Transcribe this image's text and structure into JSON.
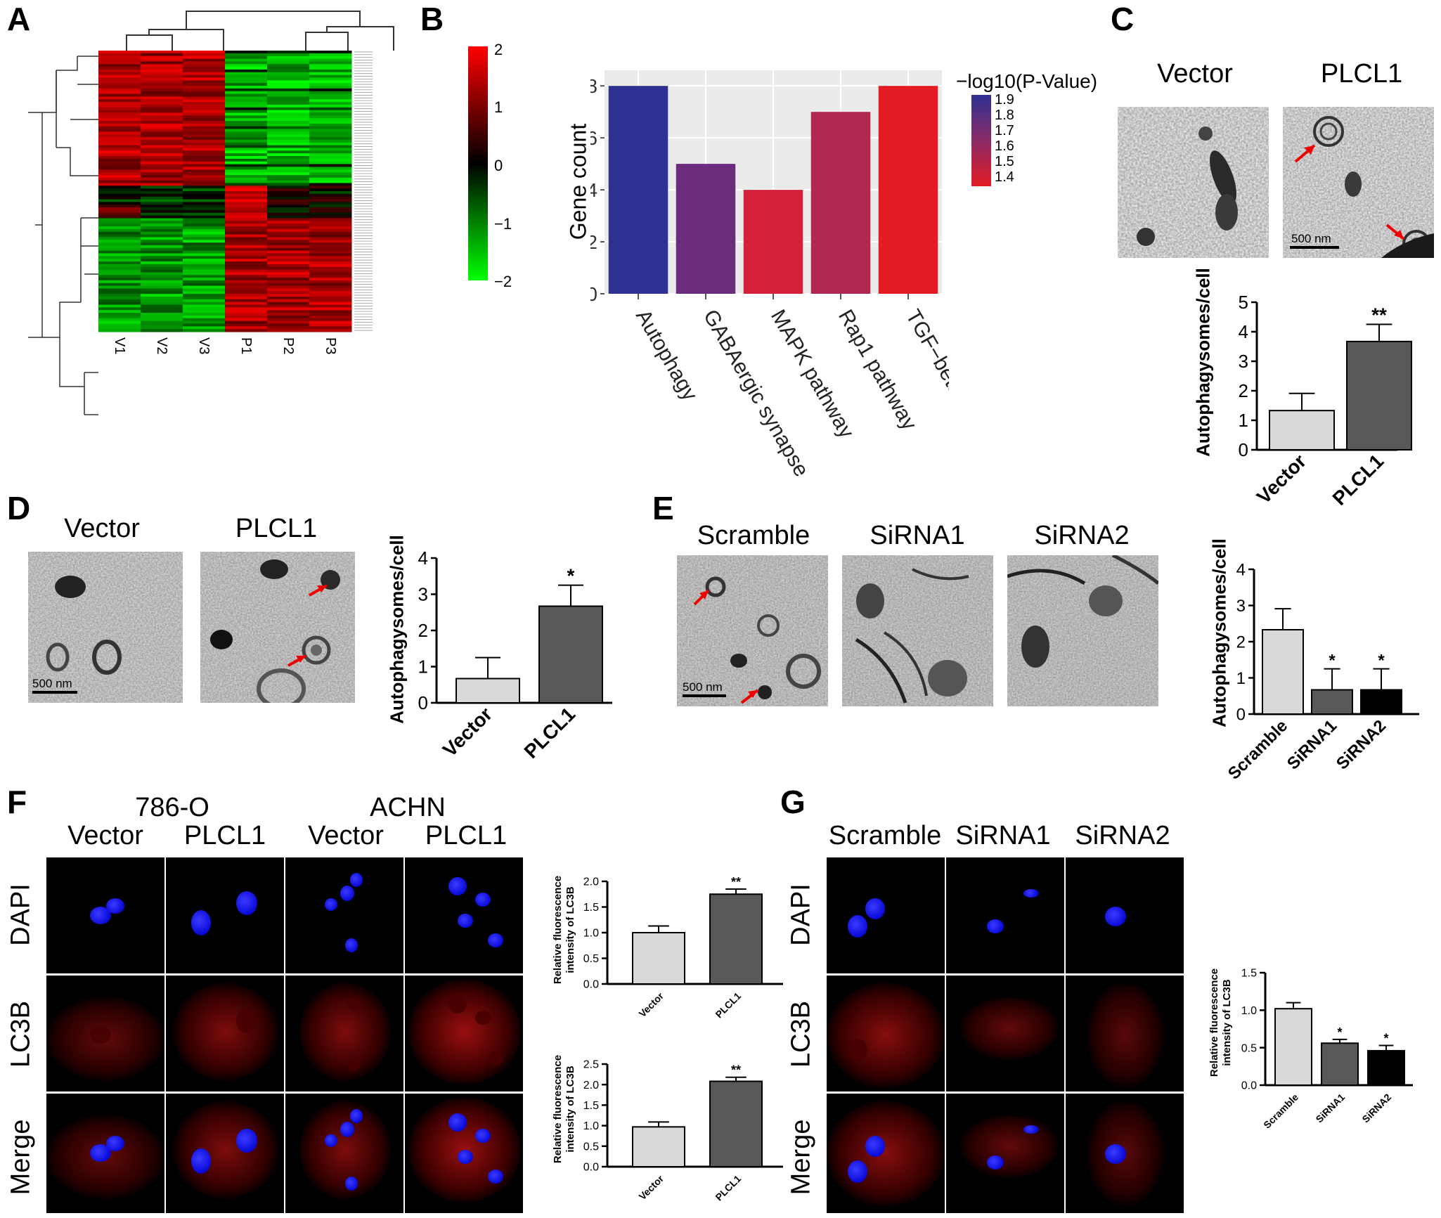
{
  "panels": {
    "A": "A",
    "B": "B",
    "C": "C",
    "D": "D",
    "E": "E",
    "F": "F",
    "G": "G"
  },
  "heatmap": {
    "columns": [
      "V1",
      "V2",
      "V3",
      "P1",
      "P2",
      "P3"
    ],
    "scale_ticks": [
      "2",
      "1",
      "0",
      "−1",
      "−2"
    ],
    "scale_colors": [
      "#ff0000",
      "#000000",
      "#00ff00"
    ]
  },
  "panelB": {
    "ylabel": "Gene count",
    "legend_title": "−log10(P-Value)",
    "legend_ticks": [
      "1.9",
      "1.8",
      "1.7",
      "1.6",
      "1.5",
      "1.4"
    ]
  },
  "panelC": {
    "captions": [
      "Vector",
      "PLCL1"
    ],
    "scalebar": "500 nm"
  },
  "panelD": {
    "captions": [
      "Vector",
      "PLCL1"
    ],
    "scalebar": "500 nm"
  },
  "panelE": {
    "captions": [
      "Scramble",
      "SiRNA1",
      "SiRNA2"
    ],
    "scalebar": "500 nm"
  },
  "panelF": {
    "cell_lines": [
      "786-O",
      "ACHN"
    ],
    "columns": [
      "Vector",
      "PLCL1",
      "Vector",
      "PLCL1"
    ],
    "rows": [
      "DAPI",
      "LC3B",
      "Merge"
    ]
  },
  "panelG": {
    "columns": [
      "Scramble",
      "SiRNA1",
      "SiRNA2"
    ],
    "rows": [
      "DAPI",
      "LC3B",
      "Merge"
    ]
  },
  "chart_data": [
    {
      "id": "B",
      "type": "bar",
      "categories": [
        "Autophagy",
        "GABAergic synapse",
        "MAPK pathway",
        "Rap1 pathway",
        "TGF−beta pathway"
      ],
      "values": [
        8,
        5,
        4,
        7,
        8
      ],
      "colors": [
        "#2e3192",
        "#6b2c7e",
        "#d4213a",
        "#b0284f",
        "#e31c23"
      ],
      "xlabel": "",
      "ylabel": "Gene count",
      "ylim": [
        0,
        8.6
      ],
      "yticks": [
        0,
        2,
        4,
        6,
        8
      ],
      "grid": true,
      "legend": "top-right"
    },
    {
      "id": "C",
      "type": "bar",
      "categories": [
        "Vector",
        "PLCL1"
      ],
      "values": [
        1.33,
        3.67
      ],
      "errors": [
        0.58,
        0.58
      ],
      "significance": [
        "",
        "**"
      ],
      "colors": [
        "#d9d9d9",
        "#595959"
      ],
      "ylabel": "Autophagysomes/cell",
      "ylim": [
        0,
        5
      ],
      "yticks": [
        0,
        1,
        2,
        3,
        4,
        5
      ]
    },
    {
      "id": "D",
      "type": "bar",
      "categories": [
        "Vector",
        "PLCL1"
      ],
      "values": [
        0.67,
        2.67
      ],
      "errors": [
        0.58,
        0.58
      ],
      "significance": [
        "",
        "*"
      ],
      "colors": [
        "#d9d9d9",
        "#595959"
      ],
      "ylabel": "Autophagysomes/cell",
      "ylim": [
        0,
        4
      ],
      "yticks": [
        0,
        1,
        2,
        3,
        4
      ]
    },
    {
      "id": "E",
      "type": "bar",
      "categories": [
        "Scramble",
        "SiRNA1",
        "SiRNA2"
      ],
      "values": [
        2.33,
        0.67,
        0.67
      ],
      "errors": [
        0.58,
        0.58,
        0.58
      ],
      "significance": [
        "",
        "*",
        "*"
      ],
      "colors": [
        "#d9d9d9",
        "#595959",
        "#000000"
      ],
      "ylabel": "Autophagysomes/cell",
      "ylim": [
        0,
        4
      ],
      "yticks": [
        0,
        1,
        2,
        3,
        4
      ]
    },
    {
      "id": "F1",
      "type": "bar",
      "categories": [
        "Vector",
        "PLCL1"
      ],
      "values": [
        1.0,
        1.75
      ],
      "errors": [
        0.13,
        0.1
      ],
      "significance": [
        "",
        "**"
      ],
      "colors": [
        "#d9d9d9",
        "#595959"
      ],
      "ylabel": "Relative fluorescence intensity of LC3B",
      "ylim": [
        0,
        2.0
      ],
      "yticks": [
        "0.0",
        "0.5",
        "1.0",
        "1.5",
        "2.0"
      ]
    },
    {
      "id": "F2",
      "type": "bar",
      "categories": [
        "Vector",
        "PLCL1"
      ],
      "values": [
        0.97,
        2.08
      ],
      "errors": [
        0.12,
        0.1
      ],
      "significance": [
        "",
        "**"
      ],
      "colors": [
        "#d9d9d9",
        "#595959"
      ],
      "ylabel": "Relative fluorescence intensity of LC3B",
      "ylim": [
        0,
        2.5
      ],
      "yticks": [
        "0.0",
        "0.5",
        "1.0",
        "1.5",
        "2.0",
        "2.5"
      ]
    },
    {
      "id": "G",
      "type": "bar",
      "categories": [
        "Scramble",
        "SiRNA1",
        "SiRNA2"
      ],
      "values": [
        1.02,
        0.56,
        0.46
      ],
      "errors": [
        0.08,
        0.05,
        0.07
      ],
      "significance": [
        "",
        "*",
        "*"
      ],
      "colors": [
        "#d9d9d9",
        "#595959",
        "#000000"
      ],
      "ylabel": "Relative fluorescence intensity of LC3B",
      "ylim": [
        0,
        1.5
      ],
      "yticks": [
        "0.0",
        "0.5",
        "1.0",
        "1.5"
      ]
    }
  ]
}
